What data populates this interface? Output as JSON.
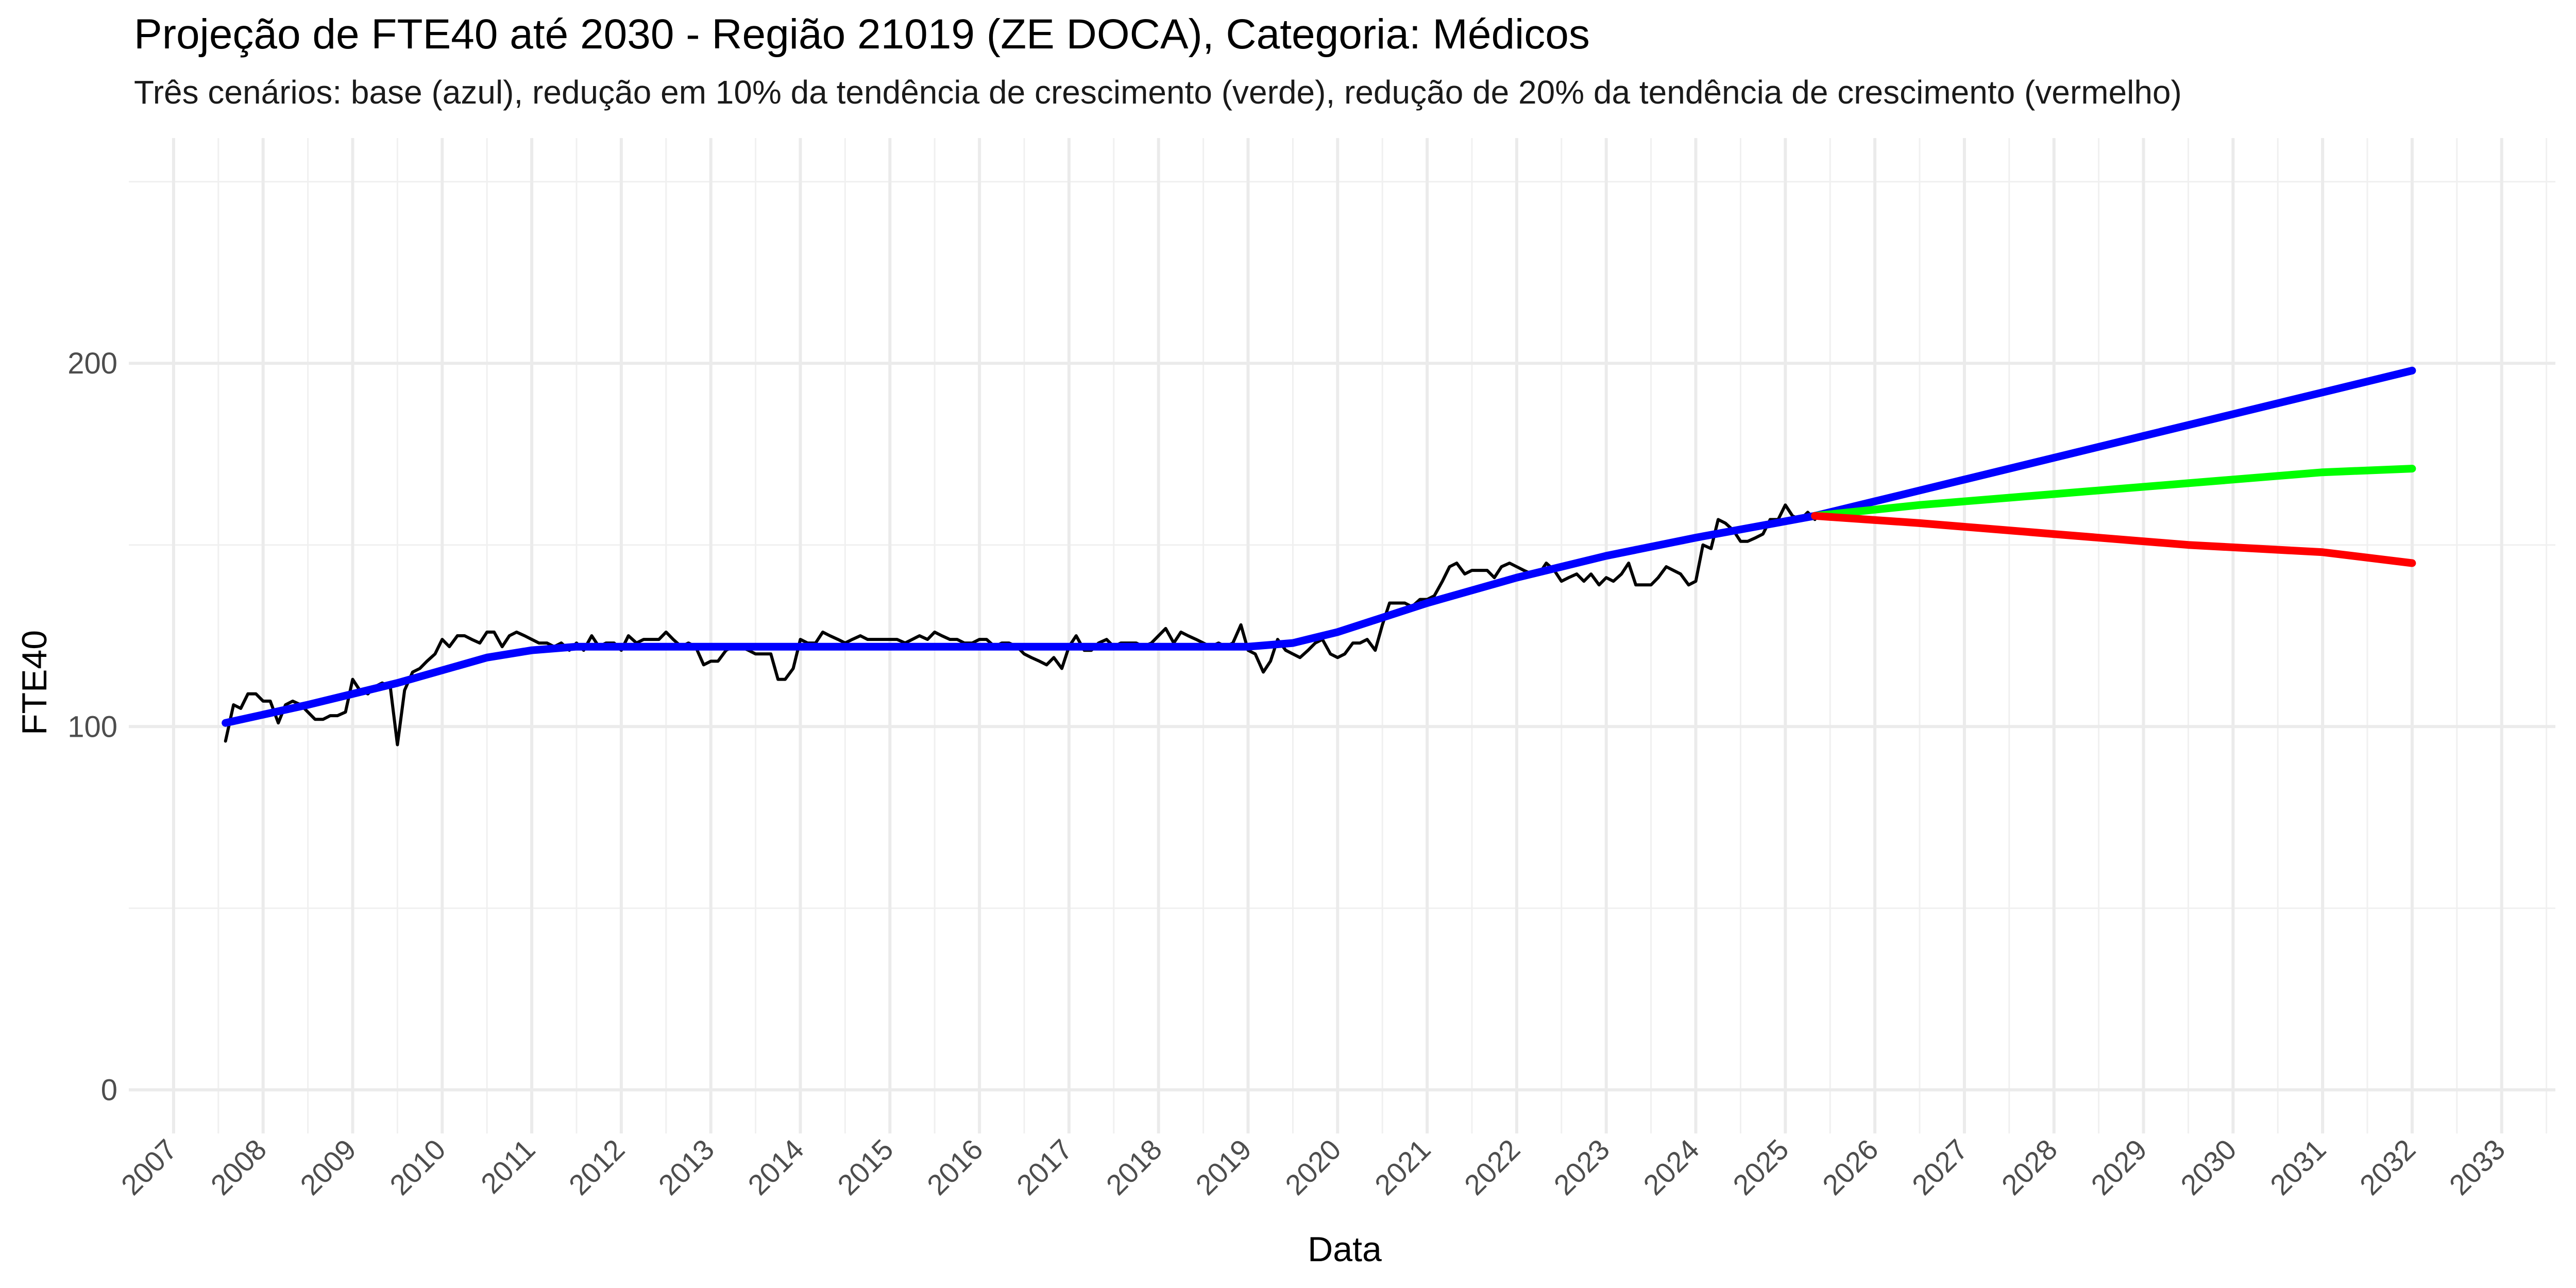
{
  "chart_data": {
    "type": "line",
    "title": "Projeção de FTE40 até 2030 - Região 21019 (ZE DOCA), Categoria: Médicos",
    "subtitle": "Três cenários: base (azul), redução em 10% da tendência de crescimento (verde), redução de 20% da tendência de crescimento (vermelho)",
    "xlabel": "Data",
    "ylabel": "FTE40",
    "xlim": [
      2006.5,
      2033.6
    ],
    "ylim": [
      -12,
      262
    ],
    "x_ticks": [
      "2007",
      "2008",
      "2009",
      "2010",
      "2011",
      "2012",
      "2013",
      "2014",
      "2015",
      "2016",
      "2017",
      "2018",
      "2019",
      "2020",
      "2021",
      "2022",
      "2023",
      "2024",
      "2025",
      "2026",
      "2027",
      "2028",
      "2029",
      "2030",
      "2031",
      "2032",
      "2033"
    ],
    "y_ticks": [
      0,
      100,
      200
    ],
    "grid": true,
    "legend": "none",
    "series": [
      {
        "color": "#000000",
        "points": [
          [
            2007.58,
            96
          ],
          [
            2007.67,
            106
          ],
          [
            2007.75,
            105
          ],
          [
            2007.83,
            109
          ],
          [
            2007.92,
            109
          ],
          [
            2008.0,
            107
          ],
          [
            2008.08,
            107
          ],
          [
            2008.17,
            101
          ],
          [
            2008.25,
            106
          ],
          [
            2008.33,
            107
          ],
          [
            2008.42,
            106
          ],
          [
            2008.5,
            104
          ],
          [
            2008.58,
            102
          ],
          [
            2008.67,
            102
          ],
          [
            2008.75,
            103
          ],
          [
            2008.83,
            103
          ],
          [
            2008.92,
            104
          ],
          [
            2009.0,
            113
          ],
          [
            2009.08,
            110
          ],
          [
            2009.17,
            109
          ],
          [
            2009.25,
            111
          ],
          [
            2009.33,
            112
          ],
          [
            2009.42,
            111
          ],
          [
            2009.5,
            95
          ],
          [
            2009.58,
            110
          ],
          [
            2009.67,
            115
          ],
          [
            2009.75,
            116
          ],
          [
            2009.83,
            118
          ],
          [
            2009.92,
            120
          ],
          [
            2010.0,
            124
          ],
          [
            2010.08,
            122
          ],
          [
            2010.17,
            125
          ],
          [
            2010.25,
            125
          ],
          [
            2010.33,
            124
          ],
          [
            2010.42,
            123
          ],
          [
            2010.5,
            126
          ],
          [
            2010.58,
            126
          ],
          [
            2010.67,
            122
          ],
          [
            2010.75,
            125
          ],
          [
            2010.83,
            126
          ],
          [
            2010.92,
            125
          ],
          [
            2011.0,
            124
          ],
          [
            2011.08,
            123
          ],
          [
            2011.17,
            123
          ],
          [
            2011.25,
            122
          ],
          [
            2011.33,
            123
          ],
          [
            2011.42,
            121
          ],
          [
            2011.5,
            123
          ],
          [
            2011.58,
            121
          ],
          [
            2011.67,
            125
          ],
          [
            2011.75,
            122
          ],
          [
            2011.83,
            123
          ],
          [
            2011.92,
            123
          ],
          [
            2012.0,
            121
          ],
          [
            2012.08,
            125
          ],
          [
            2012.17,
            123
          ],
          [
            2012.25,
            124
          ],
          [
            2012.33,
            124
          ],
          [
            2012.42,
            124
          ],
          [
            2012.5,
            126
          ],
          [
            2012.58,
            124
          ],
          [
            2012.67,
            122
          ],
          [
            2012.75,
            123
          ],
          [
            2012.83,
            122
          ],
          [
            2012.92,
            117
          ],
          [
            2013.0,
            118
          ],
          [
            2013.08,
            118
          ],
          [
            2013.17,
            121
          ],
          [
            2013.25,
            122
          ],
          [
            2013.33,
            122
          ],
          [
            2013.42,
            121
          ],
          [
            2013.5,
            120
          ],
          [
            2013.58,
            120
          ],
          [
            2013.67,
            120
          ],
          [
            2013.75,
            113
          ],
          [
            2013.83,
            113
          ],
          [
            2013.92,
            116
          ],
          [
            2014.0,
            124
          ],
          [
            2014.08,
            123
          ],
          [
            2014.17,
            123
          ],
          [
            2014.25,
            126
          ],
          [
            2014.33,
            125
          ],
          [
            2014.42,
            124
          ],
          [
            2014.5,
            123
          ],
          [
            2014.58,
            124
          ],
          [
            2014.67,
            125
          ],
          [
            2014.75,
            124
          ],
          [
            2014.83,
            124
          ],
          [
            2014.92,
            124
          ],
          [
            2015.0,
            124
          ],
          [
            2015.08,
            124
          ],
          [
            2015.17,
            123
          ],
          [
            2015.25,
            124
          ],
          [
            2015.33,
            125
          ],
          [
            2015.42,
            124
          ],
          [
            2015.5,
            126
          ],
          [
            2015.58,
            125
          ],
          [
            2015.67,
            124
          ],
          [
            2015.75,
            124
          ],
          [
            2015.83,
            123
          ],
          [
            2015.92,
            123
          ],
          [
            2016.0,
            124
          ],
          [
            2016.08,
            124
          ],
          [
            2016.17,
            122
          ],
          [
            2016.25,
            123
          ],
          [
            2016.33,
            123
          ],
          [
            2016.42,
            122
          ],
          [
            2016.5,
            120
          ],
          [
            2016.58,
            119
          ],
          [
            2016.67,
            118
          ],
          [
            2016.75,
            117
          ],
          [
            2016.83,
            119
          ],
          [
            2016.92,
            116
          ],
          [
            2017.0,
            122
          ],
          [
            2017.08,
            125
          ],
          [
            2017.17,
            121
          ],
          [
            2017.25,
            121
          ],
          [
            2017.33,
            123
          ],
          [
            2017.42,
            124
          ],
          [
            2017.5,
            122
          ],
          [
            2017.58,
            123
          ],
          [
            2017.67,
            123
          ],
          [
            2017.75,
            123
          ],
          [
            2017.83,
            122
          ],
          [
            2017.92,
            123
          ],
          [
            2018.0,
            125
          ],
          [
            2018.08,
            127
          ],
          [
            2018.17,
            123
          ],
          [
            2018.25,
            126
          ],
          [
            2018.33,
            125
          ],
          [
            2018.42,
            124
          ],
          [
            2018.5,
            123
          ],
          [
            2018.58,
            122
          ],
          [
            2018.67,
            123
          ],
          [
            2018.75,
            122
          ],
          [
            2018.83,
            123
          ],
          [
            2018.92,
            128
          ],
          [
            2019.0,
            121
          ],
          [
            2019.08,
            120
          ],
          [
            2019.17,
            115
          ],
          [
            2019.25,
            118
          ],
          [
            2019.33,
            124
          ],
          [
            2019.42,
            121
          ],
          [
            2019.5,
            120
          ],
          [
            2019.58,
            119
          ],
          [
            2019.67,
            121
          ],
          [
            2019.75,
            123
          ],
          [
            2019.83,
            124
          ],
          [
            2019.92,
            120
          ],
          [
            2020.0,
            119
          ],
          [
            2020.08,
            120
          ],
          [
            2020.17,
            123
          ],
          [
            2020.25,
            123
          ],
          [
            2020.33,
            124
          ],
          [
            2020.42,
            121
          ],
          [
            2020.5,
            128
          ],
          [
            2020.58,
            134
          ],
          [
            2020.67,
            134
          ],
          [
            2020.75,
            134
          ],
          [
            2020.83,
            133
          ],
          [
            2020.92,
            135
          ],
          [
            2021.0,
            135
          ],
          [
            2021.08,
            136
          ],
          [
            2021.17,
            140
          ],
          [
            2021.25,
            144
          ],
          [
            2021.33,
            145
          ],
          [
            2021.42,
            142
          ],
          [
            2021.5,
            143
          ],
          [
            2021.58,
            143
          ],
          [
            2021.67,
            143
          ],
          [
            2021.75,
            141
          ],
          [
            2021.83,
            144
          ],
          [
            2021.92,
            145
          ],
          [
            2022.0,
            144
          ],
          [
            2022.08,
            143
          ],
          [
            2022.17,
            142
          ],
          [
            2022.25,
            142
          ],
          [
            2022.33,
            145
          ],
          [
            2022.42,
            143
          ],
          [
            2022.5,
            140
          ],
          [
            2022.58,
            141
          ],
          [
            2022.67,
            142
          ],
          [
            2022.75,
            140
          ],
          [
            2022.83,
            142
          ],
          [
            2022.92,
            139
          ],
          [
            2023.0,
            141
          ],
          [
            2023.08,
            140
          ],
          [
            2023.17,
            142
          ],
          [
            2023.25,
            145
          ],
          [
            2023.33,
            139
          ],
          [
            2023.42,
            139
          ],
          [
            2023.5,
            139
          ],
          [
            2023.58,
            141
          ],
          [
            2023.67,
            144
          ],
          [
            2023.75,
            143
          ],
          [
            2023.83,
            142
          ],
          [
            2023.92,
            139
          ],
          [
            2024.0,
            140
          ],
          [
            2024.08,
            150
          ],
          [
            2024.17,
            149
          ],
          [
            2024.25,
            157
          ],
          [
            2024.33,
            156
          ],
          [
            2024.42,
            154
          ],
          [
            2024.5,
            151
          ],
          [
            2024.58,
            151
          ],
          [
            2024.67,
            152
          ],
          [
            2024.75,
            153
          ],
          [
            2024.83,
            157
          ],
          [
            2024.92,
            157
          ],
          [
            2025.0,
            161
          ],
          [
            2025.08,
            158
          ],
          [
            2025.17,
            157
          ],
          [
            2025.25,
            159
          ],
          [
            2025.33,
            157
          ]
        ]
      },
      {
        "color": "#0000ff",
        "points": [
          [
            2007.58,
            101
          ],
          [
            2008.5,
            106
          ],
          [
            2009.5,
            112
          ],
          [
            2010.5,
            119
          ],
          [
            2011.0,
            121
          ],
          [
            2011.5,
            122
          ],
          [
            2012.5,
            122
          ],
          [
            2015.0,
            122
          ],
          [
            2017.0,
            122
          ],
          [
            2019.0,
            122
          ],
          [
            2019.5,
            123
          ],
          [
            2020.0,
            126
          ],
          [
            2020.5,
            130
          ],
          [
            2021.0,
            134
          ],
          [
            2022.0,
            141
          ],
          [
            2023.0,
            147
          ],
          [
            2024.0,
            152
          ],
          [
            2025.33,
            158
          ],
          [
            2026.0,
            162
          ],
          [
            2027.0,
            168
          ],
          [
            2028.0,
            174
          ],
          [
            2029.0,
            180
          ],
          [
            2030.0,
            186
          ],
          [
            2031.0,
            192
          ],
          [
            2032.0,
            198
          ]
        ]
      },
      {
        "color": "#00ff00",
        "points": [
          [
            2025.33,
            158
          ],
          [
            2026.5,
            161
          ],
          [
            2028.0,
            164
          ],
          [
            2029.5,
            167
          ],
          [
            2031.0,
            170
          ],
          [
            2032.0,
            171
          ]
        ]
      },
      {
        "color": "#ff0000",
        "points": [
          [
            2025.33,
            158
          ],
          [
            2026.5,
            156
          ],
          [
            2028.0,
            153
          ],
          [
            2029.5,
            150
          ],
          [
            2031.0,
            148
          ],
          [
            2032.0,
            145
          ]
        ]
      }
    ]
  }
}
